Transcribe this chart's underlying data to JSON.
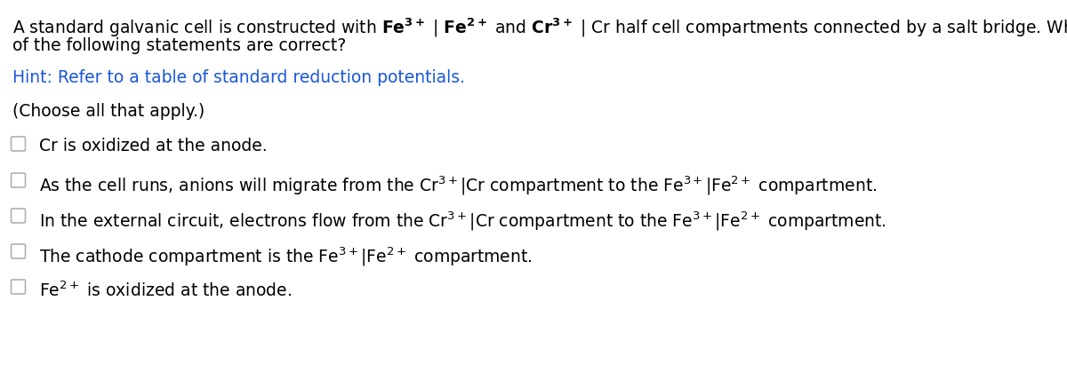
{
  "bg_color": "#ffffff",
  "text_color": "#000000",
  "hint_color": "#1a56db",
  "font_size_main": 13.5,
  "font_size_options": 13.5,
  "title_line1_parts": [
    {
      "text": "A standard galvanic cell is constructed with ",
      "bold": false
    },
    {
      "text": "Fe",
      "bold": true
    },
    {
      "text": "3+",
      "bold": true,
      "super": true
    },
    {
      "text": " | ",
      "bold": false
    },
    {
      "text": "Fe",
      "bold": true
    },
    {
      "text": "2+",
      "bold": true,
      "super": true
    },
    {
      "text": " and ",
      "bold": false
    },
    {
      "text": "Cr",
      "bold": true
    },
    {
      "text": "3+",
      "bold": true,
      "super": true
    },
    {
      "text": " | Cr half cell compartments connected by a salt bridge. Which",
      "bold": false
    }
  ],
  "title_line2": "of the following statements are correct?",
  "hint": "Hint: Refer to a table of standard reduction potentials.",
  "choose": "(Choose all that apply.)",
  "option_texts_mathtext": [
    "Cr is oxidized at the anode.",
    "As the cell runs, anions will migrate from the Cr$^{3+}$|Cr compartment to the Fe$^{3+}$|Fe$^{2+}$ compartment.",
    "In the external circuit, electrons flow from the Cr$^{3+}$|Cr compartment to the Fe$^{3+}$|Fe$^{2+}$ compartment.",
    "The cathode compartment is the Fe$^{3+}$|Fe$^{2+}$ compartment.",
    "Fe$^{2+}$ is oxidized at the anode."
  ],
  "title_mathtext": "A standard galvanic cell is constructed with $\\mathbf{Fe^{3+}}$ | $\\mathbf{Fe^{2+}}$ and $\\mathbf{Cr^{3+}}$ | Cr half cell compartments connected by a salt bridge. Which",
  "checkbox_color": "#aaaaaa",
  "checkbox_linewidth": 1.2
}
